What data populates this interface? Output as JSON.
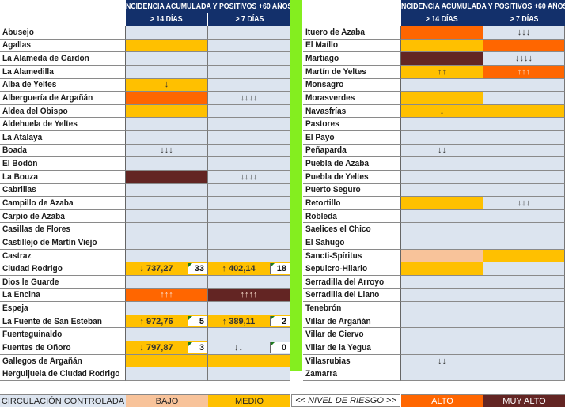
{
  "header": {
    "title": "INCIDENCIA ACUMULADA Y POSITIVOS +60 AÑOS",
    "col1": "> 14 DÍAS",
    "col2": "> 7 DÍAS"
  },
  "colors": {
    "none": "#dce4ef",
    "bajo": "#f8c39a",
    "medio": "#ffc000",
    "alto": "#ff6600",
    "muy_alto": "#632523",
    "header": "#13306b",
    "divider": "#84ee1f"
  },
  "left": [
    {
      "name": "Abusejo",
      "c1": {
        "level": "none"
      },
      "c2": {
        "level": "none"
      }
    },
    {
      "name": "Agallas",
      "c1": {
        "level": "medio"
      },
      "c2": {
        "level": "none"
      }
    },
    {
      "name": "La Alameda de Gardón",
      "c1": {
        "level": "none"
      },
      "c2": {
        "level": "none"
      }
    },
    {
      "name": "La Alamedilla",
      "c1": {
        "level": "none"
      },
      "c2": {
        "level": "none"
      }
    },
    {
      "name": "Alba de Yeltes",
      "c1": {
        "level": "medio",
        "text": "↓"
      },
      "c2": {
        "level": "none"
      }
    },
    {
      "name": "Alberguería de Argañán",
      "c1": {
        "level": "alto"
      },
      "c2": {
        "level": "none",
        "text": "↓↓↓↓"
      }
    },
    {
      "name": "Aldea del Obispo",
      "c1": {
        "level": "medio"
      },
      "c2": {
        "level": "none"
      }
    },
    {
      "name": "Aldehuela de Yeltes",
      "c1": {
        "level": "none"
      },
      "c2": {
        "level": "none"
      }
    },
    {
      "name": "La Atalaya",
      "c1": {
        "level": "none"
      },
      "c2": {
        "level": "none"
      }
    },
    {
      "name": "Boada",
      "c1": {
        "level": "none",
        "text": "↓↓↓"
      },
      "c2": {
        "level": "none"
      }
    },
    {
      "name": "El Bodón",
      "c1": {
        "level": "none"
      },
      "c2": {
        "level": "none"
      }
    },
    {
      "name": "La Bouza",
      "c1": {
        "level": "muy_alto"
      },
      "c2": {
        "level": "none",
        "text": "↓↓↓↓"
      }
    },
    {
      "name": "Cabrillas",
      "c1": {
        "level": "none"
      },
      "c2": {
        "level": "none"
      }
    },
    {
      "name": "Campillo de Azaba",
      "c1": {
        "level": "none"
      },
      "c2": {
        "level": "none"
      }
    },
    {
      "name": "Carpio de Azaba",
      "c1": {
        "level": "none"
      },
      "c2": {
        "level": "none"
      }
    },
    {
      "name": "Casillas de Flores",
      "c1": {
        "level": "none"
      },
      "c2": {
        "level": "none"
      }
    },
    {
      "name": "Castillejo de Martín Viejo",
      "c1": {
        "level": "none"
      },
      "c2": {
        "level": "none"
      }
    },
    {
      "name": "Castraz",
      "c1": {
        "level": "none"
      },
      "c2": {
        "level": "none"
      }
    },
    {
      "name": "Ciudad Rodrigo",
      "c1": {
        "level": "medio",
        "text": "↓ 737,27",
        "count": "33"
      },
      "c2": {
        "level": "medio",
        "text": "↑ 402,14",
        "count": "18"
      }
    },
    {
      "name": "Dios le Guarde",
      "c1": {
        "level": "none"
      },
      "c2": {
        "level": "none"
      }
    },
    {
      "name": "La Encina",
      "c1": {
        "level": "alto",
        "text": "↑↑↑"
      },
      "c2": {
        "level": "muy_alto",
        "text": "↑↑↑↑"
      }
    },
    {
      "name": "Espeja",
      "c1": {
        "level": "none"
      },
      "c2": {
        "level": "none"
      }
    },
    {
      "name": "La Fuente de San Esteban",
      "c1": {
        "level": "medio",
        "text": "↑ 972,76",
        "count": "5"
      },
      "c2": {
        "level": "medio",
        "text": "↑ 389,11",
        "count": "2"
      }
    },
    {
      "name": "Fuenteguinaldo",
      "c1": {
        "level": "none"
      },
      "c2": {
        "level": "none"
      }
    },
    {
      "name": "Fuentes de Oñoro",
      "c1": {
        "level": "medio",
        "text": "↓ 797,87",
        "count": "3"
      },
      "c2": {
        "level": "none",
        "text": "↓↓",
        "count": "0"
      }
    },
    {
      "name": "Gallegos de Argañán",
      "c1": {
        "level": "medio"
      },
      "c2": {
        "level": "medio"
      }
    },
    {
      "name": "Herguijuela de Ciudad Rodrigo",
      "c1": {
        "level": "none"
      },
      "c2": {
        "level": "none"
      }
    }
  ],
  "right": [
    {
      "name": "Ituero de Azaba",
      "c1": {
        "level": "alto"
      },
      "c2": {
        "level": "none",
        "text": "↓↓↓"
      }
    },
    {
      "name": "El Maíllo",
      "c1": {
        "level": "medio"
      },
      "c2": {
        "level": "alto"
      }
    },
    {
      "name": "Martiago",
      "c1": {
        "level": "muy_alto"
      },
      "c2": {
        "level": "none",
        "text": "↓↓↓↓"
      }
    },
    {
      "name": "Martín de Yeltes",
      "c1": {
        "level": "medio",
        "text": "↑↑"
      },
      "c2": {
        "level": "alto",
        "text": "↑↑↑"
      }
    },
    {
      "name": "Monsagro",
      "c1": {
        "level": "none"
      },
      "c2": {
        "level": "none"
      }
    },
    {
      "name": "Morasverdes",
      "c1": {
        "level": "medio"
      },
      "c2": {
        "level": "none"
      }
    },
    {
      "name": "Navasfrías",
      "c1": {
        "level": "medio",
        "text": "↓"
      },
      "c2": {
        "level": "medio"
      }
    },
    {
      "name": "Pastores",
      "c1": {
        "level": "none"
      },
      "c2": {
        "level": "none"
      }
    },
    {
      "name": "El Payo",
      "c1": {
        "level": "none"
      },
      "c2": {
        "level": "none"
      }
    },
    {
      "name": "Peñaparda",
      "c1": {
        "level": "none",
        "text": "↓↓"
      },
      "c2": {
        "level": "none"
      }
    },
    {
      "name": "Puebla de Azaba",
      "c1": {
        "level": "none"
      },
      "c2": {
        "level": "none"
      }
    },
    {
      "name": "Puebla de Yeltes",
      "c1": {
        "level": "none"
      },
      "c2": {
        "level": "none"
      }
    },
    {
      "name": "Puerto Seguro",
      "c1": {
        "level": "none"
      },
      "c2": {
        "level": "none"
      }
    },
    {
      "name": "Retortillo",
      "c1": {
        "level": "medio"
      },
      "c2": {
        "level": "none",
        "text": "↓↓↓"
      }
    },
    {
      "name": "Robleda",
      "c1": {
        "level": "none"
      },
      "c2": {
        "level": "none"
      }
    },
    {
      "name": "Saelices el Chico",
      "c1": {
        "level": "none"
      },
      "c2": {
        "level": "none"
      }
    },
    {
      "name": "El Sahugo",
      "c1": {
        "level": "none"
      },
      "c2": {
        "level": "none"
      }
    },
    {
      "name": "Sancti-Spíritus",
      "c1": {
        "level": "bajo"
      },
      "c2": {
        "level": "medio"
      }
    },
    {
      "name": "Sepulcro-Hilario",
      "c1": {
        "level": "medio"
      },
      "c2": {
        "level": "none"
      }
    },
    {
      "name": "Serradilla del Arroyo",
      "c1": {
        "level": "none"
      },
      "c2": {
        "level": "none"
      }
    },
    {
      "name": "Serradilla del Llano",
      "c1": {
        "level": "none"
      },
      "c2": {
        "level": "none"
      }
    },
    {
      "name": "Tenebrón",
      "c1": {
        "level": "none"
      },
      "c2": {
        "level": "none"
      }
    },
    {
      "name": "Villar de Argañán",
      "c1": {
        "level": "none"
      },
      "c2": {
        "level": "none"
      }
    },
    {
      "name": "Villar de Ciervo",
      "c1": {
        "level": "none"
      },
      "c2": {
        "level": "none"
      }
    },
    {
      "name": "Villar de la Yegua",
      "c1": {
        "level": "none"
      },
      "c2": {
        "level": "none"
      }
    },
    {
      "name": "Villasrubias",
      "c1": {
        "level": "none",
        "text": "↓↓"
      },
      "c2": {
        "level": "none"
      }
    },
    {
      "name": "Zamarra",
      "c1": {
        "level": "none"
      },
      "c2": {
        "level": "none"
      }
    }
  ],
  "legend": {
    "controlled": "CIRCULACIÓN CONTROLADA",
    "bajo": "BAJO",
    "medio": "MEDIO",
    "nivel": "<< NIVEL DE RIESGO >>",
    "alto": "ALTO",
    "muy_alto": "MUY ALTO"
  }
}
